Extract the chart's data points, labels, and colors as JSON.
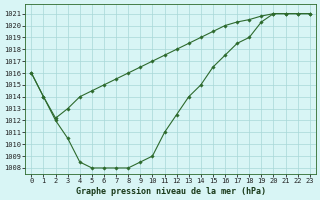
{
  "line1_x": [
    0,
    1,
    2,
    3,
    4,
    5,
    6,
    7,
    8,
    9,
    10,
    11,
    12,
    13,
    14,
    15,
    16,
    17,
    18,
    19,
    20,
    21,
    22,
    23
  ],
  "line1_y": [
    1016,
    1014,
    1012,
    1010.5,
    1008.5,
    1008,
    1008,
    1008,
    1008,
    1008.5,
    1009,
    1011,
    1012.5,
    1014,
    1015,
    1016.5,
    1017.5,
    1018.5,
    1019,
    1020.3,
    1021,
    1021,
    1021,
    1021
  ],
  "line2_x": [
    0,
    1,
    2,
    3,
    4,
    5,
    6,
    7,
    8,
    9,
    10,
    11,
    12,
    13,
    14,
    15,
    16,
    17,
    18,
    19,
    20,
    21,
    22,
    23
  ],
  "line2_y": [
    1016,
    1014,
    1012.2,
    1013,
    1014,
    1014.5,
    1015,
    1015.5,
    1016,
    1016.5,
    1017,
    1017.5,
    1018,
    1018.5,
    1019,
    1019.5,
    1020,
    1020.3,
    1020.5,
    1020.8,
    1021,
    1021,
    1021,
    1021
  ],
  "line_color": "#2d6a2d",
  "marker": "D",
  "markersize": 1.8,
  "linewidth": 0.8,
  "bg_color": "#d8f5f5",
  "grid_color": "#a8d8d8",
  "yticks": [
    1008,
    1009,
    1010,
    1011,
    1012,
    1013,
    1014,
    1015,
    1016,
    1017,
    1018,
    1019,
    1020,
    1021
  ],
  "ylim": [
    1007.5,
    1021.8
  ],
  "xlim": [
    -0.5,
    23.5
  ],
  "xlabel": "Graphe pression niveau de la mer (hPa)",
  "tick_fontsize": 5,
  "xlabel_fontsize": 6
}
